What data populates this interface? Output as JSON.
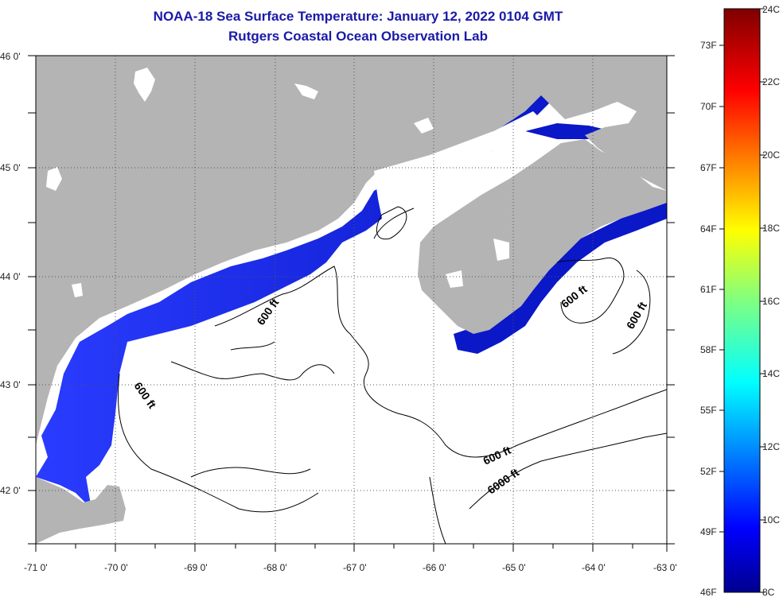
{
  "title": {
    "line1": "NOAA-18 Sea Surface Temperature:  January 12, 2022 0104 GMT",
    "line2": "Rutgers Coastal Ocean Observation Lab"
  },
  "map": {
    "lon_range": [
      -71,
      -63
    ],
    "lat_range": [
      41.5,
      46
    ],
    "lon_ticks": [
      "-71 0'",
      "-70 0'",
      "-69 0'",
      "-68 0'",
      "-67 0'",
      "-66 0'",
      "-65 0'",
      "-64 0'",
      "-63 0'"
    ],
    "lat_ticks": [
      "46 0'",
      "45 0'",
      "44 0'",
      "43 0'",
      "42 0'"
    ],
    "contour_labels": {
      "a": "600 ft",
      "b": "600 ft",
      "c": "600 ft",
      "d": "600 ft",
      "e": "600 ft",
      "f": "6000 ft"
    },
    "colors": {
      "land": "#b4b4b4",
      "water_cold": "#0a1ed0",
      "water_mid": "#2840ff",
      "contour": "#000000"
    }
  },
  "colorbar": {
    "fahrenheit": [
      "73F",
      "70F",
      "67F",
      "64F",
      "61F",
      "58F",
      "55F",
      "52F",
      "49F",
      "46F"
    ],
    "celsius": [
      "24C",
      "22C",
      "20C",
      "18C",
      "16C",
      "14C",
      "12C",
      "10C",
      "8C"
    ],
    "range_c": [
      8,
      24
    ]
  }
}
